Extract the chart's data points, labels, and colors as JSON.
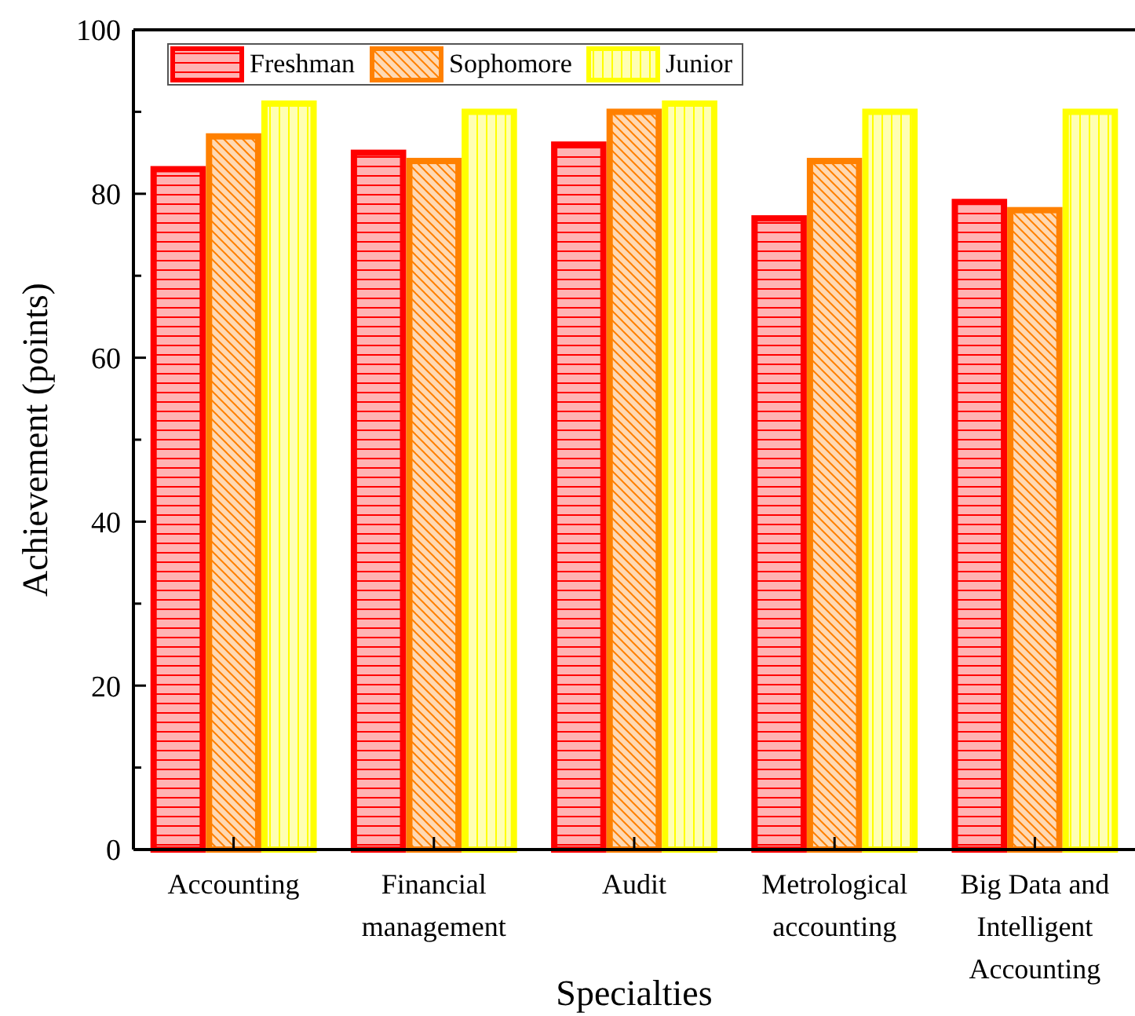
{
  "chart_data": {
    "type": "bar",
    "xlabel": "Specialties",
    "ylabel": "Achievement (points)",
    "categories": [
      "Accounting",
      "Financial management",
      "Audit",
      "Metrological accounting",
      "Big Data and Intelligent Accounting"
    ],
    "series": [
      {
        "name": "Freshman",
        "color": "#ff0000",
        "values": [
          83,
          85,
          86,
          77,
          79
        ]
      },
      {
        "name": "Sophomore",
        "color": "#ff8000",
        "values": [
          87,
          84,
          90,
          84,
          78
        ]
      },
      {
        "name": "Junior",
        "color": "#ffff00",
        "values": [
          91,
          90,
          91,
          90,
          90
        ]
      }
    ],
    "ylim": [
      0,
      100
    ],
    "yticks": [
      0,
      {
        "value": 10,
        "label": null
      },
      20,
      {
        "value": 30,
        "label": null
      },
      40,
      {
        "value": 50,
        "label": null
      },
      60,
      {
        "value": 70,
        "label": null
      },
      80,
      {
        "value": 90,
        "label": null
      },
      100
    ],
    "grid": false,
    "legend": "top left"
  }
}
